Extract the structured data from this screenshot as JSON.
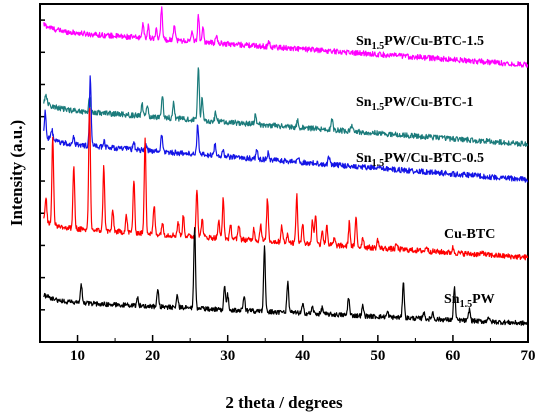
{
  "chart_data": {
    "type": "line",
    "xlabel": "2 theta / degrees",
    "ylabel": "Intensity (a.u.)",
    "xlim": [
      5,
      70
    ],
    "xticks": [
      10,
      20,
      30,
      40,
      50,
      60,
      70
    ],
    "y_axis_tick_labels": false,
    "grid": false,
    "series": [
      {
        "name": "Sn1.5PW/Cu-BTC-1.5",
        "label_main": "Sn",
        "label_sub": "1.5",
        "label_rest": "PW/Cu-BTC-1.5",
        "color": "#ff00ff",
        "baseline_start": 0.92,
        "baseline_end": 0.82,
        "noise": 0.008,
        "peaks": [
          [
            18.7,
            0.045
          ],
          [
            19.4,
            0.035
          ],
          [
            20.5,
            0.025
          ],
          [
            21.2,
            0.095
          ],
          [
            22.9,
            0.05
          ],
          [
            25.3,
            0.03
          ],
          [
            26.1,
            0.075
          ],
          [
            26.7,
            0.045
          ],
          [
            28.5,
            0.02
          ],
          [
            35.5,
            0.015
          ]
        ]
      },
      {
        "name": "Sn1.5PW/Cu-BTC-1",
        "label_main": "Sn",
        "label_sub": "1.5",
        "label_rest": "PW/Cu-BTC-1",
        "color": "#1b7b7b",
        "baseline_start": 0.69,
        "baseline_end": 0.585,
        "noise": 0.008,
        "peaks": [
          [
            5.8,
            0.03
          ],
          [
            11.6,
            0.045
          ],
          [
            18.6,
            0.035
          ],
          [
            19.3,
            0.03
          ],
          [
            21.3,
            0.07
          ],
          [
            22.8,
            0.045
          ],
          [
            26.1,
            0.155
          ],
          [
            26.6,
            0.065
          ],
          [
            28.4,
            0.025
          ],
          [
            33.7,
            0.03
          ],
          [
            39.3,
            0.02
          ],
          [
            43.9,
            0.03
          ],
          [
            46.5,
            0.015
          ]
        ]
      },
      {
        "name": "Sn1.5PW/Cu-BTC-0.5",
        "label_main": "Sn",
        "label_sub": "1.5",
        "label_rest": "PW/Cu-BTC-0.5",
        "color": "#1414e6",
        "baseline_start": 0.59,
        "baseline_end": 0.48,
        "noise": 0.008,
        "peaks": [
          [
            5.7,
            0.075
          ],
          [
            6.6,
            0.03
          ],
          [
            9.5,
            0.02
          ],
          [
            11.7,
            0.205
          ],
          [
            13.5,
            0.02
          ],
          [
            17.5,
            0.02
          ],
          [
            19.1,
            0.02
          ],
          [
            21.2,
            0.05
          ],
          [
            26.0,
            0.09
          ],
          [
            28.3,
            0.035
          ],
          [
            29.4,
            0.02
          ],
          [
            33.9,
            0.03
          ],
          [
            35.4,
            0.02
          ],
          [
            39.4,
            0.015
          ],
          [
            43.5,
            0.025
          ]
        ]
      },
      {
        "name": "Cu-BTC",
        "label_main": "Cu-BTC",
        "label_sub": "",
        "label_rest": "",
        "color": "#ff0000",
        "baseline_start": 0.34,
        "baseline_end": 0.25,
        "noise": 0.008,
        "peaks": [
          [
            5.8,
            0.07
          ],
          [
            6.7,
            0.265
          ],
          [
            9.5,
            0.185
          ],
          [
            11.6,
            0.365
          ],
          [
            13.5,
            0.19
          ],
          [
            14.7,
            0.06
          ],
          [
            16.5,
            0.05
          ],
          [
            17.5,
            0.155
          ],
          [
            19.0,
            0.285
          ],
          [
            20.2,
            0.085
          ],
          [
            21.3,
            0.035
          ],
          [
            23.4,
            0.04
          ],
          [
            24.1,
            0.06
          ],
          [
            25.9,
            0.145
          ],
          [
            26.6,
            0.055
          ],
          [
            28.8,
            0.05
          ],
          [
            29.4,
            0.115
          ],
          [
            30.4,
            0.04
          ],
          [
            31.5,
            0.045
          ],
          [
            33.5,
            0.035
          ],
          [
            34.4,
            0.05
          ],
          [
            35.3,
            0.125
          ],
          [
            37.2,
            0.05
          ],
          [
            38.0,
            0.025
          ],
          [
            39.2,
            0.14
          ],
          [
            40.0,
            0.06
          ],
          [
            41.3,
            0.07
          ],
          [
            41.7,
            0.09
          ],
          [
            42.6,
            0.045
          ],
          [
            43.2,
            0.06
          ],
          [
            44.2,
            0.02
          ],
          [
            46.2,
            0.07
          ],
          [
            47.1,
            0.085
          ],
          [
            48.0,
            0.03
          ],
          [
            50.0,
            0.025
          ],
          [
            52.5,
            0.015
          ],
          [
            56.5,
            0.015
          ],
          [
            60.0,
            0.015
          ],
          [
            64.0,
            0.01
          ]
        ]
      },
      {
        "name": "Sn1.5PW",
        "label_main": "Sn",
        "label_sub": "1.5",
        "label_rest": "PW",
        "color": "#000000",
        "baseline_start": 0.12,
        "baseline_end": 0.055,
        "noise": 0.007,
        "peaks": [
          [
            10.5,
            0.055
          ],
          [
            18.0,
            0.025
          ],
          [
            20.7,
            0.05
          ],
          [
            23.3,
            0.04
          ],
          [
            25.6,
            0.24
          ],
          [
            29.6,
            0.075
          ],
          [
            30.0,
            0.045
          ],
          [
            32.2,
            0.04
          ],
          [
            34.9,
            0.19
          ],
          [
            38.0,
            0.09
          ],
          [
            40.0,
            0.025
          ],
          [
            41.3,
            0.02
          ],
          [
            42.6,
            0.02
          ],
          [
            46.1,
            0.055
          ],
          [
            48.0,
            0.03
          ],
          [
            51.3,
            0.015
          ],
          [
            53.4,
            0.11
          ],
          [
            56.1,
            0.02
          ],
          [
            57.3,
            0.02
          ],
          [
            60.2,
            0.1
          ],
          [
            62.2,
            0.035
          ],
          [
            64.7,
            0.015
          ]
        ]
      }
    ]
  }
}
